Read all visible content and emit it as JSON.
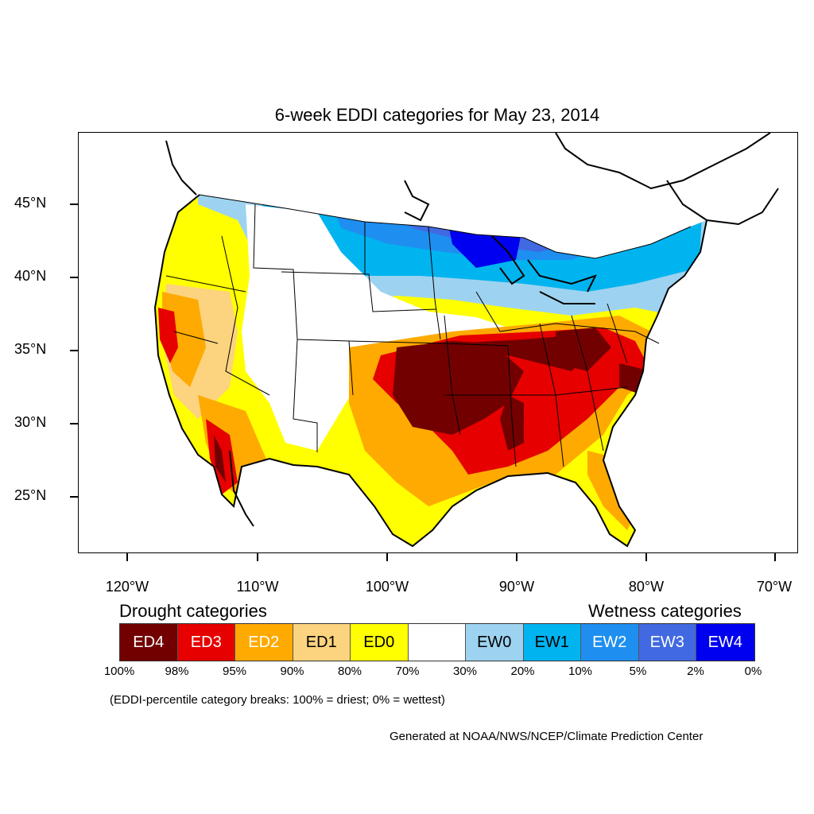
{
  "title": "6-week EDDI categories for May 23, 2014",
  "axes": {
    "lat_labels": [
      "45°N",
      "40°N",
      "35°N",
      "30°N",
      "25°N"
    ],
    "lon_labels": [
      "120°W",
      "110°W",
      "100°W",
      "90°W",
      "80°W",
      "70°W"
    ]
  },
  "legend": {
    "drought_heading": "Drought categories",
    "wetness_heading": "Wetness categories",
    "categories": [
      {
        "label": "ED4",
        "color": "#730000",
        "text_color": "#ffffff"
      },
      {
        "label": "ED3",
        "color": "#e60000",
        "text_color": "#ffffff"
      },
      {
        "label": "ED2",
        "color": "#ffaa00",
        "text_color": "#ffffff"
      },
      {
        "label": "ED1",
        "color": "#fcd37f",
        "text_color": "#000000"
      },
      {
        "label": "ED0",
        "color": "#ffff00",
        "text_color": "#000000"
      },
      {
        "label": "",
        "color": "#ffffff",
        "text_color": "#000000"
      },
      {
        "label": "EW0",
        "color": "#9dd3f0",
        "text_color": "#000000"
      },
      {
        "label": "EW1",
        "color": "#00b4f0",
        "text_color": "#000000"
      },
      {
        "label": "EW2",
        "color": "#1e8ff0",
        "text_color": "#ffffff"
      },
      {
        "label": "EW3",
        "color": "#4169e1",
        "text_color": "#ffffff"
      },
      {
        "label": "EW4",
        "color": "#0000f0",
        "text_color": "#ffffff"
      }
    ],
    "breaks": [
      "100%",
      "98%",
      "95%",
      "90%",
      "80%",
      "70%",
      "30%",
      "20%",
      "10%",
      "5%",
      "2%",
      "0%"
    ]
  },
  "note": "(EDDI-percentile category breaks: 100% = driest; 0% = wettest)",
  "credit": "Generated at NOAA/NWS/NCEP/Climate Prediction Center"
}
